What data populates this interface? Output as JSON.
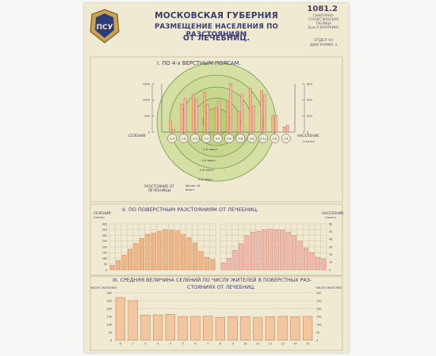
{
  "poster": {
    "title_line1": "МОСКОВСКАЯ ГУБЕРНИЯ",
    "title_line2": "РАЗМЕЩЕНИЕ НАСЕЛЕНИЯ ПО РАЗСТОЯНИЯМ",
    "title_line3": "ОТ ЛЕЧЕБНИЦ.",
    "emblem_text": "ПСУ",
    "handwritten_note": "1081.2",
    "stamp_lines": [
      "САНИТАРНО-",
      "СТАТИСТИЧЕСКАЯ",
      "ТАБЛИЦА",
      "Д-ра П.И.КУРКИНА",
      "ОТДЕЛ VII",
      "ДИАГРАММА 3"
    ],
    "colors": {
      "paper": "#f1ead2",
      "ink": "#3a3d6e",
      "orange_bar": "#f0b684",
      "pink_bar": "#f2b7ae",
      "circle_green": "#d3dea0",
      "circle_stroke": "#6f9a4e"
    }
  },
  "chart_data": [
    {
      "type": "bar",
      "title": "I. ПО 4-х ВЕРСТНЫМ ПОЯСАМ.",
      "left_axis_label": "СЕЛЕНИЯ",
      "right_axis_label": "НАСЕЛЕНИЕ",
      "right_axis_unit": "(тысяч)",
      "left_ticks": [
        "1500",
        "1000",
        "500",
        "0"
      ],
      "right_ticks": [
        "600",
        "400",
        "200",
        "0"
      ],
      "left_ylim": [
        0,
        1500
      ],
      "ring_labels": [
        "2-4",
        "1-й",
        "2-3",
        "2-4",
        "3-4",
        "4-6",
        "4-8",
        "2-8",
        "2-12",
        "1-6",
        "1-4"
      ],
      "series": [
        {
          "name": "СЕЛЕНИЯ",
          "color": "#f0b684",
          "values": [
            350,
            880,
            1180,
            1250,
            790,
            960,
            650,
            1370,
            1300,
            520,
            170
          ]
        },
        {
          "name": "НАСЕЛЕНИЕ",
          "color": "#f2b7ae",
          "values": [
            90,
            1050,
            1020,
            860,
            980,
            1520,
            1180,
            820,
            1170,
            530,
            220
          ]
        }
      ],
      "zone_labels": [
        "2-й верст",
        "3-й верст",
        "4-й верст",
        "5-й верст",
        "Далее 16 верст"
      ],
      "center_label": "РАЗСТОЯНИЕ ОТ ЛЕЧЕБНИЦЫ"
    },
    {
      "type": "bar",
      "title": "II. ПО ПОВЕРСТНЫМ РАЗСТОЯНИЯМ ОТ ЛЕЧЕБНИЦ.",
      "left_axis_label": "СЕЛЕНИЯ",
      "left_axis_sub": "(число)",
      "right_axis_label": "НАСЕЛЕНИЕ",
      "right_axis_sub": "(тысяч)",
      "left_ticks": [
        "400",
        "350",
        "300",
        "250",
        "200",
        "150",
        "100",
        "50",
        "0"
      ],
      "right_ticks": [
        "60",
        "50",
        "40",
        "30",
        "20",
        "10",
        "0"
      ],
      "ylim": [
        0,
        400
      ],
      "series": [
        {
          "name": "СЕЛЕНИЯ",
          "color": "#f0b684",
          "values": [
            40,
            80,
            130,
            180,
            230,
            275,
            310,
            320,
            335,
            350,
            345,
            340,
            310,
            280,
            235,
            160,
            110,
            90
          ]
        },
        {
          "name": "НАСЕЛЕНИЕ",
          "color": "#f2b7ae",
          "values": [
            60,
            100,
            170,
            230,
            300,
            330,
            335,
            350,
            355,
            350,
            345,
            330,
            300,
            250,
            190,
            150,
            110,
            95
          ]
        }
      ]
    },
    {
      "type": "bar",
      "title_line1": "III. СРЕДНЯЯ ВЕЛИЧИНА СЕЛЕНИЙ ПО ЧИСЛУ ЖИТЕЛЕЙ В ПОВЕРСТНЫХ РАЗ-",
      "title_line2": "СТОЯНИЯХ ОТ ЛЕЧЕБНИЦ.",
      "left_axis_label": "ЧИСЛО ЖИТЕЛЕЙ",
      "right_axis_label": "ЧИСЛО ЖИТЕЛЕЙ",
      "ticks": [
        "300",
        "250",
        "200",
        "150",
        "100",
        "50",
        "0"
      ],
      "ylim": [
        0,
        300
      ],
      "categories": [
        "0",
        "1",
        "2",
        "3",
        "4",
        "5",
        "6",
        "7",
        "8",
        "9",
        "10",
        "11",
        "12",
        "13",
        "14",
        "15"
      ],
      "series": [
        {
          "name": "",
          "color": "#f2c7a0",
          "values": [
            270,
            250,
            158,
            160,
            163,
            148,
            150,
            152,
            143,
            147,
            147,
            142,
            148,
            150,
            147,
            150
          ]
        }
      ]
    }
  ]
}
